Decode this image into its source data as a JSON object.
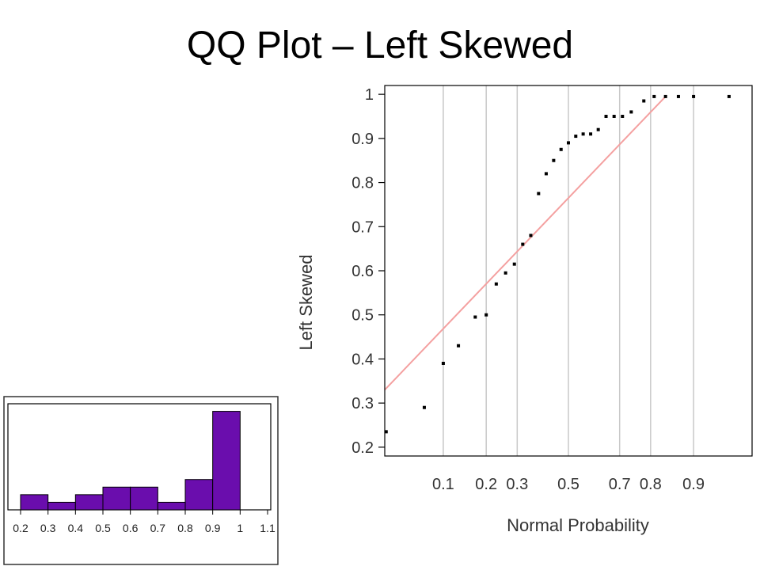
{
  "slide": {
    "title": "QQ Plot – Left Skewed"
  },
  "colors": {
    "points": "#000000",
    "ref_line": "#f4a0a0",
    "grid": "#c8c8c8",
    "bars": "#6a0dad",
    "bar_edge": "#000000"
  },
  "chart_data": [
    {
      "type": "scatter",
      "title": "",
      "xlabel": "Normal Probability",
      "ylabel": "Left Skewed",
      "x_scale": "normal-probability",
      "xlim": [
        0.03,
        0.97
      ],
      "ylim": [
        0.18,
        1.02
      ],
      "x_ticks": [
        0.1,
        0.2,
        0.3,
        0.5,
        0.7,
        0.8,
        0.9
      ],
      "x_tick_labels": [
        "0.1",
        "0.2",
        "0.3",
        "0.5",
        "0.7",
        "0.8",
        "0.9"
      ],
      "y_ticks": [
        0.2,
        0.3,
        0.4,
        0.5,
        0.6,
        0.7,
        0.8,
        0.9,
        1
      ],
      "y_tick_labels": [
        "0.2",
        "0.3",
        "0.4",
        "0.5",
        "0.6",
        "0.7",
        "0.8",
        "0.9",
        "1"
      ],
      "grid": "vertical",
      "reference_line": {
        "x": [
          0.03,
          0.84
        ],
        "y": [
          0.33,
          0.995
        ]
      },
      "points": {
        "x": [
          0.031,
          0.07,
          0.1,
          0.13,
          0.17,
          0.2,
          0.23,
          0.26,
          0.29,
          0.32,
          0.35,
          0.38,
          0.41,
          0.44,
          0.47,
          0.5,
          0.53,
          0.56,
          0.59,
          0.62,
          0.65,
          0.68,
          0.71,
          0.74,
          0.78,
          0.81,
          0.84,
          0.87,
          0.9,
          0.95
        ],
        "y": [
          0.235,
          0.29,
          0.39,
          0.43,
          0.495,
          0.5,
          0.57,
          0.595,
          0.615,
          0.66,
          0.68,
          0.775,
          0.82,
          0.85,
          0.875,
          0.89,
          0.905,
          0.91,
          0.91,
          0.92,
          0.95,
          0.95,
          0.95,
          0.96,
          0.985,
          0.995,
          0.995,
          0.995,
          0.995,
          0.995
        ]
      }
    },
    {
      "type": "bar",
      "title": "",
      "xlabel": "",
      "ylabel": "",
      "xlim": [
        0.2,
        1.1
      ],
      "x_tick_labels": [
        "0.2",
        "0.3",
        "0.4",
        "0.5",
        "0.6",
        "0.7",
        "0.8",
        "0.9",
        "1",
        "1.1"
      ],
      "bin_edges": [
        0.2,
        0.3,
        0.4,
        0.5,
        0.6,
        0.7,
        0.8,
        0.9,
        1
      ],
      "counts": [
        2,
        1,
        2,
        3,
        3,
        1,
        4,
        13
      ],
      "ylim": [
        0,
        14
      ]
    }
  ]
}
